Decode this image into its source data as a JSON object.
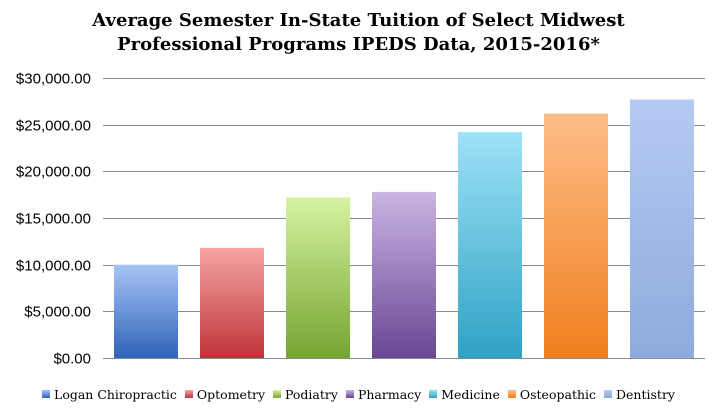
{
  "chart_data": {
    "type": "bar",
    "title_lines": [
      "Average Semester In-State Tuition of Select Midwest",
      "Professional Programs IPEDS Data, 2015-2016*"
    ],
    "categories": [
      "Logan Chiropractic",
      "Optometry",
      "Podiatry",
      "Pharmacy",
      "Medicine",
      "Osteopathic",
      "Dentistry"
    ],
    "values": [
      10000,
      11800,
      17200,
      17800,
      24200,
      26200,
      27700
    ],
    "colors": [
      [
        "#a8c4f5",
        "#2e63b8"
      ],
      [
        "#f6a4a3",
        "#c0343a"
      ],
      [
        "#d5f3a0",
        "#76a532"
      ],
      [
        "#cab6e3",
        "#6a4594"
      ],
      [
        "#9ee2f7",
        "#2fa2c4"
      ],
      [
        "#fdbd88",
        "#f07f1e"
      ],
      [
        "#b5caf2",
        "#8eaadc"
      ]
    ],
    "ylim": [
      0,
      30000
    ],
    "yticks": [
      "$0.00",
      "$5,000.00",
      "$10,000.00",
      "$15,000.00",
      "$20,000.00",
      "$25,000.00",
      "$30,000.00"
    ],
    "legend_position": "bottom",
    "grid": true
  }
}
